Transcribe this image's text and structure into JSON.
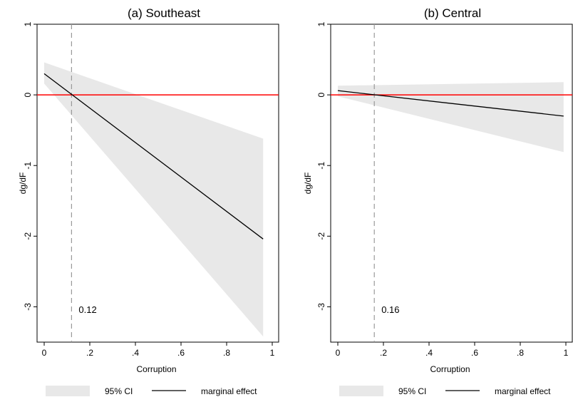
{
  "chart_data": [
    {
      "type": "line",
      "title": "(a) Southeast",
      "xlabel": "Corruption",
      "ylabel": "dg/dF",
      "xlim": [
        0,
        1
      ],
      "ylim": [
        -3.5,
        1
      ],
      "xticks": [
        0,
        0.2,
        0.4,
        0.6,
        0.8,
        1
      ],
      "xtick_labels": [
        "0",
        ".2",
        ".4",
        ".6",
        ".8",
        "1"
      ],
      "yticks": [
        1,
        0,
        -1,
        -2,
        -3
      ],
      "ytick_labels": [
        "1",
        "0",
        "-1",
        "-2",
        "-3"
      ],
      "grid": false,
      "reference_line": {
        "y": 0,
        "color": "#ff0000"
      },
      "threshold_line": {
        "x": 0.12,
        "label": "0.12",
        "color": "#999999"
      },
      "series": [
        {
          "name": "marginal effect",
          "kind": "line",
          "color": "#000000",
          "x": [
            0,
            0.96
          ],
          "y": [
            0.3,
            -2.04
          ]
        },
        {
          "name": "95% CI",
          "kind": "band",
          "color": "#e8e8e8",
          "x": [
            0,
            0.96
          ],
          "upper": [
            0.46,
            -0.62
          ],
          "lower": [
            0.16,
            -3.42
          ]
        }
      ],
      "legend": {
        "position": "bottom",
        "entries": [
          "95% CI",
          "marginal effect"
        ]
      }
    },
    {
      "type": "line",
      "title": "(b) Central",
      "xlabel": "Corruption",
      "ylabel": "dg/dF",
      "xlim": [
        0,
        1
      ],
      "ylim": [
        -3.5,
        1
      ],
      "xticks": [
        0,
        0.2,
        0.4,
        0.6,
        0.8,
        1
      ],
      "xtick_labels": [
        "0",
        ".2",
        ".4",
        ".6",
        ".8",
        "1"
      ],
      "yticks": [
        1,
        0,
        -1,
        -2,
        -3
      ],
      "ytick_labels": [
        "1",
        "0",
        "-1",
        "-2",
        "-3"
      ],
      "grid": false,
      "reference_line": {
        "y": 0,
        "color": "#ff0000"
      },
      "threshold_line": {
        "x": 0.16,
        "label": "0.16",
        "color": "#999999"
      },
      "series": [
        {
          "name": "marginal effect",
          "kind": "line",
          "color": "#000000",
          "x": [
            0,
            0.99
          ],
          "y": [
            0.06,
            -0.3
          ]
        },
        {
          "name": "95% CI",
          "kind": "band",
          "color": "#e8e8e8",
          "x": [
            0,
            0.99
          ],
          "upper": [
            0.13,
            0.18
          ],
          "lower": [
            -0.02,
            -0.81
          ]
        }
      ],
      "legend": {
        "position": "bottom",
        "entries": [
          "95% CI",
          "marginal effect"
        ]
      }
    }
  ]
}
